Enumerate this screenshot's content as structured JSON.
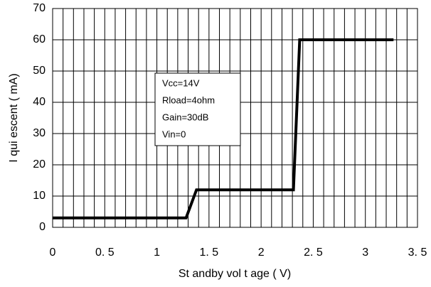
{
  "chart_data": {
    "type": "line",
    "xlabel": "St andby vol t age ( V)",
    "ylabel": "I qui escent  ( mA)",
    "annotations": [
      "Vcc=14V",
      "Rload=4ohm",
      "Gain=30dB",
      "Vin=0"
    ],
    "x": [
      0,
      1.28,
      1.38,
      2.31,
      2.37,
      3.27
    ],
    "series": [
      {
        "name": "Iquiescent",
        "color": "#000000",
        "values": [
          3,
          3,
          12,
          12,
          60,
          60
        ]
      }
    ],
    "xlim": [
      0,
      3.5
    ],
    "ylim": [
      0,
      70
    ],
    "xticks": [
      0,
      {
        "value": 0.5,
        "label": "0. 5"
      },
      1,
      {
        "value": 1.5,
        "label": "1. 5"
      },
      2,
      {
        "value": 2.5,
        "label": "2. 5"
      },
      3,
      {
        "value": 3.5,
        "label": "3. 5"
      }
    ],
    "yticks": [
      0,
      10,
      20,
      30,
      40,
      50,
      60,
      70
    ],
    "xgrid": [
      0.1,
      0.2,
      0.3,
      0.4,
      0.6,
      0.7,
      0.8,
      0.9,
      1.1,
      1.2,
      1.3,
      1.4,
      1.6,
      1.7,
      1.8,
      1.9,
      2.1,
      2.2,
      2.3,
      2.4,
      2.6,
      2.7,
      2.8,
      2.9,
      3.1,
      3.2,
      3.3,
      3.4
    ],
    "grid": true
  }
}
